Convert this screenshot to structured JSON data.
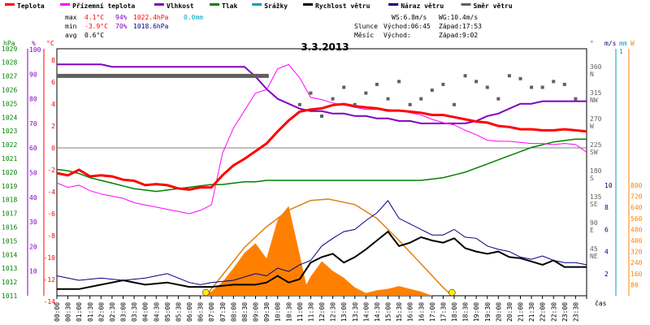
{
  "chart_data": {
    "type": "line",
    "title": "3.3.2013",
    "legend": [
      {
        "name": "Teplota",
        "color": "#ff0000"
      },
      {
        "name": "Přízemní teplota",
        "color": "#ff00ff"
      },
      {
        "name": "Vlhkost",
        "color": "#8000c0"
      },
      {
        "name": "Tlak",
        "color": "#008000"
      },
      {
        "name": "Srážky",
        "color": "#00a0c0"
      },
      {
        "name": "Rychlost větru",
        "color": "#000000"
      },
      {
        "name": "Náraz větru",
        "color": "#000080"
      },
      {
        "name": "Směr větru",
        "color": "#606060"
      }
    ],
    "stats": {
      "max_label": "max",
      "min_label": "min",
      "avg_label": "avg",
      "max_temp": "4.1°C",
      "max_hum": "94%",
      "max_press": "1022.4hPa",
      "max_rain": "0.0mm",
      "min_temp": "-3.9°C",
      "min_hum": "70%",
      "min_press": "1018.6hPa",
      "avg_temp": "0.6°C",
      "ws": "WS:6.8m/s",
      "wg": "WG:10.4m/s",
      "sun_label": "Slunce",
      "moon_label": "Měsíc",
      "sun_rise": "Východ:06:45",
      "sun_set": "Západ:17:53",
      "moon_rise": "Východ:",
      "moon_set": "Západ:9:02"
    },
    "axes": {
      "hpa_unit": "hPa",
      "pct_unit": "%",
      "temp_unit": "°C",
      "dir_unit": "°",
      "ms_unit": "m/s",
      "mm_unit": "mm",
      "w_unit": "W",
      "x_unit": "čas",
      "hpa_ticks": [
        "1029",
        "1028",
        "1027",
        "1026",
        "1025",
        "1024",
        "1023",
        "1022",
        "1021",
        "1020",
        "1019",
        "1018",
        "1017",
        "1016",
        "1015",
        "1014",
        "1013",
        "1012",
        "1011"
      ],
      "pct_ticks": [
        "100",
        "90",
        "80",
        "70",
        "60",
        "50",
        "40",
        "30",
        "20",
        "10"
      ],
      "temp_ticks": [
        "8",
        "6",
        "4",
        "2",
        "0",
        "-2",
        "-4",
        "-6",
        "-8",
        "-10",
        "-12",
        "-14"
      ],
      "dir_ticks": [
        "360",
        "315",
        "270",
        "225",
        "180",
        "135",
        "90",
        "45"
      ],
      "dir_labels": [
        "N",
        "NW",
        "W",
        "SW",
        "S",
        "SE",
        "E",
        "NE"
      ],
      "ms_ticks": [
        "10",
        "8",
        "6",
        "4",
        "2"
      ],
      "mm_ticks": [
        "1"
      ],
      "w_ticks": [
        "800",
        "720",
        "640",
        "560",
        "480",
        "400",
        "320",
        "240",
        "160",
        "80"
      ],
      "x_ticks": [
        "00:00",
        "00:30",
        "01:00",
        "01:30",
        "02:00",
        "02:30",
        "03:00",
        "03:30",
        "04:00",
        "04:30",
        "05:00",
        "05:30",
        "06:00",
        "06:30",
        "07:00",
        "07:30",
        "08:00",
        "08:30",
        "09:00",
        "09:30",
        "10:00",
        "10:30",
        "11:00",
        "11:30",
        "12:00",
        "12:30",
        "13:00",
        "13:30",
        "14:00",
        "14:30",
        "15:00",
        "15:30",
        "16:00",
        "16:30",
        "17:00",
        "17:30",
        "18:00",
        "18:30",
        "19:00",
        "19:30",
        "20:00",
        "20:30",
        "21:00",
        "21:30",
        "22:00",
        "22:30",
        "23:00",
        "23:30"
      ]
    },
    "series": {
      "temperature": {
        "x": [
          0,
          0.5,
          1,
          1.5,
          2,
          2.5,
          3,
          3.5,
          4,
          4.5,
          5,
          5.5,
          6,
          6.5,
          7,
          7.5,
          8,
          8.5,
          9,
          9.5,
          10,
          10.5,
          11,
          11.5,
          12,
          12.5,
          13,
          13.5,
          14,
          14.5,
          15,
          15.5,
          16,
          16.5,
          17,
          17.5,
          18,
          18.5,
          19,
          19.5,
          20,
          20.5,
          21,
          21.5,
          22,
          22.5,
          23,
          23.5,
          24
        ],
        "y": [
          -2.3,
          -2.5,
          -2.0,
          -2.6,
          -2.5,
          -2.6,
          -2.9,
          -3.0,
          -3.4,
          -3.3,
          -3.4,
          -3.7,
          -3.8,
          -3.6,
          -3.6,
          -2.5,
          -1.6,
          -1.0,
          -0.3,
          0.4,
          1.5,
          2.5,
          3.3,
          3.5,
          3.6,
          3.9,
          4.0,
          3.8,
          3.7,
          3.6,
          3.4,
          3.4,
          3.3,
          3.2,
          3.0,
          3.0,
          2.8,
          2.6,
          2.4,
          2.3,
          2.0,
          1.9,
          1.7,
          1.7,
          1.6,
          1.6,
          1.7,
          1.6,
          1.5
        ]
      },
      "ground_temperature": {
        "x": [
          0,
          0.5,
          1,
          1.5,
          2,
          2.5,
          3,
          3.5,
          4,
          4.5,
          5,
          5.5,
          6,
          6.5,
          7,
          7.5,
          8,
          8.5,
          9,
          9.5,
          10,
          10.5,
          11,
          11.5,
          12,
          12.5,
          13,
          13.5,
          14,
          14.5,
          15,
          15.5,
          16,
          16.5,
          17,
          17.5,
          18,
          18.5,
          19,
          19.5,
          20,
          20.5,
          21,
          21.5,
          22,
          22.5,
          23,
          23.5,
          24
        ],
        "y": [
          -3.2,
          -3.6,
          -3.4,
          -3.9,
          -4.2,
          -4.4,
          -4.6,
          -5.0,
          -5.2,
          -5.4,
          -5.6,
          -5.8,
          -6.0,
          -5.7,
          -5.2,
          -0.5,
          1.8,
          3.4,
          5.0,
          5.3,
          7.2,
          7.6,
          6.4,
          4.6,
          4.4,
          4.1,
          3.9,
          3.7,
          3.5,
          3.5,
          3.5,
          3.4,
          3.2,
          3.0,
          2.6,
          2.3,
          2.1,
          1.6,
          1.2,
          0.7,
          0.6,
          0.6,
          0.5,
          0.4,
          0.4,
          0.3,
          0.4,
          0.3,
          -0.4
        ]
      },
      "humidity": {
        "x": [
          0,
          0.5,
          1,
          1.5,
          2,
          2.5,
          3,
          3.5,
          4,
          4.5,
          5,
          5.5,
          6,
          6.5,
          7,
          7.5,
          8,
          8.5,
          9,
          9.5,
          10,
          10.5,
          11,
          11.5,
          12,
          12.5,
          13,
          13.5,
          14,
          14.5,
          15,
          15.5,
          16,
          16.5,
          17,
          17.5,
          18,
          18.5,
          19,
          19.5,
          20,
          20.5,
          21,
          21.5,
          22,
          22.5,
          23,
          23.5,
          24
        ],
        "y": [
          94,
          94,
          94,
          94,
          94,
          93,
          93,
          93,
          93,
          93,
          93,
          93,
          93,
          93,
          93,
          93,
          93,
          93,
          89,
          84,
          80,
          78,
          76,
          75,
          75,
          74,
          74,
          73,
          73,
          72,
          72,
          71,
          71,
          70,
          70,
          70,
          70,
          70,
          71,
          73,
          74,
          76,
          78,
          78,
          79,
          79,
          79,
          79,
          79
        ]
      },
      "pressure": {
        "x": [
          0,
          0.5,
          1,
          1.5,
          2,
          2.5,
          3,
          3.5,
          4,
          4.5,
          5,
          5.5,
          6,
          6.5,
          7,
          7.5,
          8,
          8.5,
          9,
          9.5,
          10,
          10.5,
          11,
          11.5,
          12,
          12.5,
          13,
          13.5,
          14,
          14.5,
          15,
          15.5,
          16,
          16.5,
          17,
          17.5,
          18,
          18.5,
          19,
          19.5,
          20,
          20.5,
          21,
          21.5,
          22,
          22.5,
          23,
          23.5,
          24
        ],
        "y": [
          1020.2,
          1020.1,
          1019.9,
          1019.6,
          1019.4,
          1019.2,
          1019.0,
          1018.8,
          1018.7,
          1018.6,
          1018.7,
          1018.8,
          1018.9,
          1019.0,
          1019.1,
          1019.1,
          1019.2,
          1019.3,
          1019.3,
          1019.4,
          1019.4,
          1019.4,
          1019.4,
          1019.4,
          1019.4,
          1019.4,
          1019.4,
          1019.4,
          1019.4,
          1019.4,
          1019.4,
          1019.4,
          1019.4,
          1019.4,
          1019.5,
          1019.6,
          1019.8,
          1020.0,
          1020.3,
          1020.6,
          1020.9,
          1021.2,
          1021.5,
          1021.8,
          1022.0,
          1022.2,
          1022.3,
          1022.4,
          1022.4
        ]
      },
      "wind_speed": {
        "x": [
          0,
          1,
          2,
          3,
          4,
          5,
          6,
          6.5,
          7,
          8,
          9,
          9.5,
          10,
          10.5,
          11,
          11.5,
          12,
          12.5,
          13,
          13.5,
          14,
          14.5,
          15,
          15.5,
          16,
          16.5,
          17,
          17.5,
          18,
          18.5,
          19,
          19.5,
          20,
          20.5,
          21,
          21.5,
          22,
          22.5,
          23,
          23.5,
          24
        ],
        "y": [
          0.6,
          0.6,
          1.0,
          1.4,
          1.0,
          1.2,
          0.8,
          0.8,
          0.8,
          1.0,
          1.0,
          1.2,
          1.8,
          1.2,
          1.5,
          3.0,
          3.5,
          3.8,
          3.0,
          3.5,
          4.2,
          5.0,
          5.8,
          4.5,
          4.8,
          5.3,
          5.0,
          4.8,
          5.2,
          4.3,
          4.0,
          3.8,
          4.0,
          3.5,
          3.4,
          3.1,
          2.8,
          3.2,
          2.6,
          2.6,
          2.6
        ]
      },
      "wind_gust": {
        "x": [
          0,
          1,
          2,
          3,
          4,
          5,
          6,
          6.5,
          7,
          8,
          9,
          9.5,
          10,
          10.5,
          11,
          11.5,
          12,
          12.5,
          13,
          13.5,
          14,
          14.5,
          15,
          15.5,
          16,
          16.5,
          17,
          17.5,
          18,
          18.5,
          19,
          19.5,
          20,
          20.5,
          21,
          21.5,
          22,
          22.5,
          23,
          23.5,
          24
        ],
        "y": [
          1.8,
          1.4,
          1.6,
          1.4,
          1.6,
          2.0,
          1.2,
          1.0,
          1.2,
          1.4,
          2.0,
          1.8,
          2.5,
          2.2,
          2.8,
          3.2,
          4.5,
          5.2,
          5.8,
          6.0,
          6.8,
          7.5,
          8.6,
          7.0,
          6.5,
          6.0,
          5.5,
          5.5,
          6.0,
          5.3,
          5.2,
          4.5,
          4.2,
          4.0,
          3.5,
          3.3,
          3.6,
          3.2,
          3.0,
          3.0,
          2.8
        ]
      },
      "solar_radiation": {
        "x": [
          6.5,
          7,
          7.5,
          8,
          8.5,
          9,
          9.5,
          10,
          10.5,
          11,
          11.3,
          11.5,
          12,
          12.5,
          13,
          13.5,
          14,
          14.5,
          15,
          15.5,
          16,
          16.5,
          17,
          17.5
        ],
        "y": [
          0,
          30,
          100,
          200,
          310,
          380,
          270,
          550,
          650,
          300,
          80,
          140,
          250,
          180,
          130,
          60,
          20,
          40,
          50,
          70,
          50,
          30,
          0,
          0
        ]
      },
      "solar_theoretical": {
        "x": [
          6.75,
          7.5,
          8.5,
          9.5,
          10.5,
          11.5,
          12.3,
          13.5,
          14.5,
          15.5,
          16.5,
          17.5,
          17.9
        ],
        "y": [
          0,
          150,
          350,
          500,
          620,
          690,
          700,
          660,
          560,
          400,
          230,
          60,
          0
        ]
      },
      "wind_direction": {
        "x": [
          11,
          11.5,
          12,
          12.5,
          13,
          13.5,
          14,
          14.5,
          15,
          15.5,
          16,
          16.5,
          17,
          17.5,
          18,
          18.5,
          19,
          19.5,
          20,
          20.5,
          21,
          21.5,
          22,
          22.5,
          23,
          23.5
        ],
        "y": [
          300,
          320,
          280,
          310,
          330,
          300,
          320,
          335,
          310,
          340,
          300,
          310,
          325,
          335,
          300,
          350,
          340,
          330,
          310,
          350,
          345,
          330,
          330,
          340,
          335,
          310
        ]
      },
      "dew_bar": {
        "x_start": 0.0,
        "x_end": 9.6,
        "y": 6.6
      }
    }
  }
}
